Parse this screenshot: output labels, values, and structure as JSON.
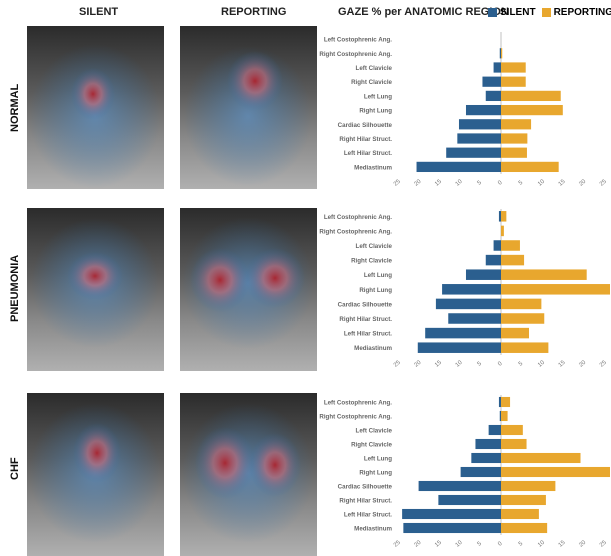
{
  "headers": {
    "silent": "SILENT",
    "reporting": "REPORTING",
    "gaze": "GAZE % per ANATOMIC REGION"
  },
  "legend": [
    {
      "label": "SILENT",
      "color": "#2b5f8f"
    },
    {
      "label": "REPORTING",
      "color": "#e8a72e"
    }
  ],
  "rows": [
    "NORMAL",
    "PNEUMONIA",
    "CHF"
  ],
  "colors": {
    "silent": "#2b5f8f",
    "reporting": "#e8a72e"
  },
  "chart_data": [
    {
      "type": "bar",
      "row": "NORMAL",
      "categories": [
        "Left Costophrenic Ang.",
        "Right Costophrenic Ang.",
        "Left Clavicle",
        "Right Clavicle",
        "Left Lung",
        "Right Lung",
        "Cardiac Silhouette",
        "Right Hilar Struct.",
        "Left Hilar Struct.",
        "Mediastinum"
      ],
      "series": [
        {
          "name": "SILENT",
          "values": [
            0,
            0.3,
            1.8,
            4.5,
            3.7,
            8.5,
            10.2,
            10.6,
            13.3,
            20.5
          ]
        },
        {
          "name": "REPORTING",
          "values": [
            0,
            0.3,
            6,
            6,
            14.5,
            15,
            7.3,
            6.4,
            6.3,
            14
          ]
        }
      ],
      "xticks": [
        "25",
        "20",
        "15",
        "10",
        "5",
        "0",
        "5",
        "10",
        "15",
        "20",
        "25"
      ],
      "xlim": [
        -25,
        25
      ]
    },
    {
      "type": "bar",
      "row": "PNEUMONIA",
      "categories": [
        "Left Costophrenic Ang.",
        "Right Costophrenic Ang.",
        "Left Clavicle",
        "Right Clavicle",
        "Left Lung",
        "Right Lung",
        "Cardiac Silhouette",
        "Right Hilar Struct.",
        "Left Hilar Struct.",
        "Mediastinum"
      ],
      "series": [
        {
          "name": "SILENT",
          "values": [
            0.5,
            0,
            1.8,
            3.7,
            8.5,
            14.3,
            15.8,
            12.8,
            18.4,
            20.2
          ]
        },
        {
          "name": "REPORTING",
          "values": [
            1.3,
            0.7,
            4.6,
            5.6,
            20.8,
            27.4,
            9.8,
            10.5,
            6.8,
            11.5
          ]
        }
      ],
      "xticks": [
        "25",
        "20",
        "15",
        "10",
        "5",
        "0",
        "5",
        "10",
        "15",
        "20",
        "25"
      ],
      "xlim": [
        -25,
        25
      ]
    },
    {
      "type": "bar",
      "row": "CHF",
      "categories": [
        "Left Costophrenic Ang.",
        "Right Costophrenic Ang.",
        "Left Clavicle",
        "Right Clavicle",
        "Left Lung",
        "Right Lung",
        "Cardiac Silhouette",
        "Right Hilar Struct.",
        "Left Hilar Struct.",
        "Mediastinum"
      ],
      "series": [
        {
          "name": "SILENT",
          "values": [
            0.5,
            0.3,
            3,
            6.2,
            7.2,
            9.8,
            20,
            15.2,
            24,
            23.7
          ]
        },
        {
          "name": "REPORTING",
          "values": [
            2.2,
            1.6,
            5.3,
            6.2,
            19.3,
            26.7,
            13.2,
            10.9,
            9.2,
            11.2
          ]
        }
      ],
      "xticks": [
        "25",
        "20",
        "15",
        "10",
        "5",
        "0",
        "5",
        "10",
        "15",
        "20",
        "25"
      ],
      "xlim": [
        -25,
        25
      ]
    }
  ]
}
